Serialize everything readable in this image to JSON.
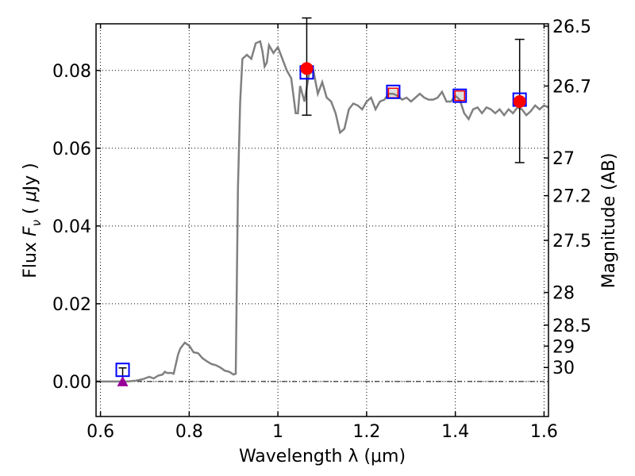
{
  "chart_data": {
    "type": "scatter",
    "xlabel": "Wavelength  λ (μm)",
    "ylabel_parts": [
      "Flux  ",
      "F",
      "ν",
      "  ( ",
      "μ",
      "Jy )"
    ],
    "y2label": "Magnitude (AB)",
    "xlim": [
      0.59,
      1.61
    ],
    "ylim": [
      -0.009,
      0.092
    ],
    "x_ticks": [
      {
        "value": 0.6,
        "label": "0.6"
      },
      {
        "value": 0.8,
        "label": "0.8"
      },
      {
        "value": 1.0,
        "label": "1"
      },
      {
        "value": 1.2,
        "label": "1.2"
      },
      {
        "value": 1.4,
        "label": "1.4"
      },
      {
        "value": 1.6,
        "label": "1.6"
      }
    ],
    "y_ticks": [
      {
        "value": 0.0,
        "label": "0.00"
      },
      {
        "value": 0.02,
        "label": "0.02"
      },
      {
        "value": 0.04,
        "label": "0.04"
      },
      {
        "value": 0.06,
        "label": "0.06"
      },
      {
        "value": 0.08,
        "label": "0.08"
      }
    ],
    "y2_ticks": [
      {
        "flux": 0.0914,
        "label": "26.5"
      },
      {
        "flux": 0.076,
        "label": "26.7"
      },
      {
        "flux": 0.0575,
        "label": "27"
      },
      {
        "flux": 0.0478,
        "label": "27.2"
      },
      {
        "flux": 0.0363,
        "label": "27.5"
      },
      {
        "flux": 0.0229,
        "label": "28"
      },
      {
        "flux": 0.0145,
        "label": "28.5"
      },
      {
        "flux": 0.0091,
        "label": "29"
      },
      {
        "flux": 0.0036,
        "label": "30"
      }
    ],
    "grid": true,
    "zero_line": true,
    "model_spectrum": {
      "color": "#808080",
      "x": [
        0.59,
        0.62,
        0.64,
        0.66,
        0.68,
        0.695,
        0.7,
        0.71,
        0.72,
        0.73,
        0.74,
        0.745,
        0.75,
        0.76,
        0.765,
        0.775,
        0.78,
        0.79,
        0.8,
        0.81,
        0.82,
        0.83,
        0.84,
        0.85,
        0.86,
        0.87,
        0.88,
        0.89,
        0.9,
        0.905,
        0.91,
        0.915,
        0.92,
        0.93,
        0.94,
        0.945,
        0.95,
        0.96,
        0.965,
        0.97,
        0.975,
        0.98,
        0.99,
        1.0,
        1.01,
        1.02,
        1.03,
        1.04,
        1.045,
        1.05,
        1.06,
        1.07,
        1.08,
        1.09,
        1.1,
        1.11,
        1.12,
        1.13,
        1.14,
        1.15,
        1.16,
        1.17,
        1.18,
        1.19,
        1.2,
        1.21,
        1.22,
        1.23,
        1.24,
        1.25,
        1.26,
        1.27,
        1.28,
        1.29,
        1.3,
        1.31,
        1.32,
        1.33,
        1.34,
        1.35,
        1.36,
        1.37,
        1.38,
        1.39,
        1.4,
        1.41,
        1.42,
        1.43,
        1.44,
        1.45,
        1.46,
        1.47,
        1.48,
        1.49,
        1.5,
        1.51,
        1.52,
        1.53,
        1.54,
        1.55,
        1.56,
        1.57,
        1.58,
        1.59,
        1.6,
        1.61
      ],
      "y": [
        0.0,
        0.0,
        0.0,
        0.0,
        0.0002,
        0.0006,
        0.0008,
        0.0012,
        0.0008,
        0.0015,
        0.0018,
        0.0025,
        0.0022,
        0.0022,
        0.002,
        0.007,
        0.0085,
        0.01,
        0.0092,
        0.0075,
        0.0073,
        0.006,
        0.0052,
        0.0045,
        0.0042,
        0.0036,
        0.0028,
        0.0025,
        0.0018,
        0.002,
        0.05,
        0.072,
        0.083,
        0.084,
        0.083,
        0.085,
        0.087,
        0.0875,
        0.085,
        0.081,
        0.082,
        0.0865,
        0.0845,
        0.086,
        0.083,
        0.08,
        0.078,
        0.069,
        0.069,
        0.076,
        0.072,
        0.079,
        0.08,
        0.074,
        0.077,
        0.073,
        0.072,
        0.069,
        0.064,
        0.065,
        0.07,
        0.0715,
        0.071,
        0.07,
        0.072,
        0.073,
        0.07,
        0.072,
        0.0725,
        0.074,
        0.074,
        0.0735,
        0.0725,
        0.073,
        0.072,
        0.073,
        0.074,
        0.073,
        0.0725,
        0.0725,
        0.073,
        0.0745,
        0.072,
        0.072,
        0.0735,
        0.0725,
        0.069,
        0.0675,
        0.07,
        0.0705,
        0.069,
        0.0705,
        0.07,
        0.069,
        0.07,
        0.0685,
        0.07,
        0.069,
        0.0705,
        0.07,
        0.0685,
        0.0695,
        0.071,
        0.07,
        0.071,
        0.0705
      ]
    },
    "observed_points": {
      "color": "#ff0000",
      "points": [
        {
          "x": 1.065,
          "y": 0.0805,
          "yerr_low": 0.0685,
          "yerr_high": 0.0935
        },
        {
          "x": 1.545,
          "y": 0.072,
          "yerr_low": 0.0563,
          "yerr_high": 0.088
        }
      ]
    },
    "model_band_squares": {
      "color": "#0000ff",
      "points": [
        {
          "x": 0.65,
          "y": 0.003
        },
        {
          "x": 1.065,
          "y": 0.0795
        },
        {
          "x": 1.26,
          "y": 0.0745
        },
        {
          "x": 1.41,
          "y": 0.0735
        },
        {
          "x": 1.545,
          "y": 0.0725
        }
      ]
    },
    "open_red_squares": {
      "color": "#ff0000",
      "points": [
        {
          "x": 1.26,
          "y": 0.0742
        },
        {
          "x": 1.41,
          "y": 0.0735
        }
      ]
    },
    "upper_limit": {
      "color": "#990099",
      "x": 0.65,
      "y": 0.0,
      "err_high": 0.0035
    }
  }
}
